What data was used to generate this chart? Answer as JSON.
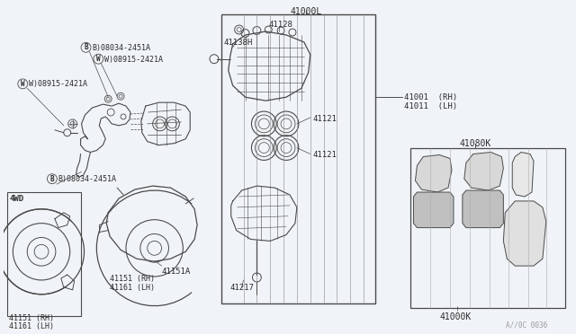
{
  "bg_color": "#f0f4f8",
  "line_color": "#4a4a4a",
  "text_color": "#2a2a2a",
  "labels": {
    "B08034_top": "B)08034-2451A",
    "W08915_top": "W)08915-2421A",
    "W08915_left": "W)08915-2421A",
    "B08034_bot": "B)08034-2451A",
    "part_41128": "41128",
    "part_41138H": "41138H",
    "part_41000L": "41000L",
    "part_41121_top": "41121",
    "part_41121_bot": "41121",
    "part_41217": "41217",
    "part_41001": "41001  (RH)",
    "part_41011": "41011  (LH)",
    "part_41080K": "41080K",
    "part_41000K": "41000K",
    "part_4WD": "4WD",
    "part_41151_RH_left": "41151 (RH)",
    "part_41161_LH_left": "41161 (LH)",
    "part_41151A": "41151A",
    "part_41151_RH_right": "41151 (RH)",
    "part_41161_LH_right": "41161 (LH)",
    "watermark": "A//0C 0036"
  }
}
